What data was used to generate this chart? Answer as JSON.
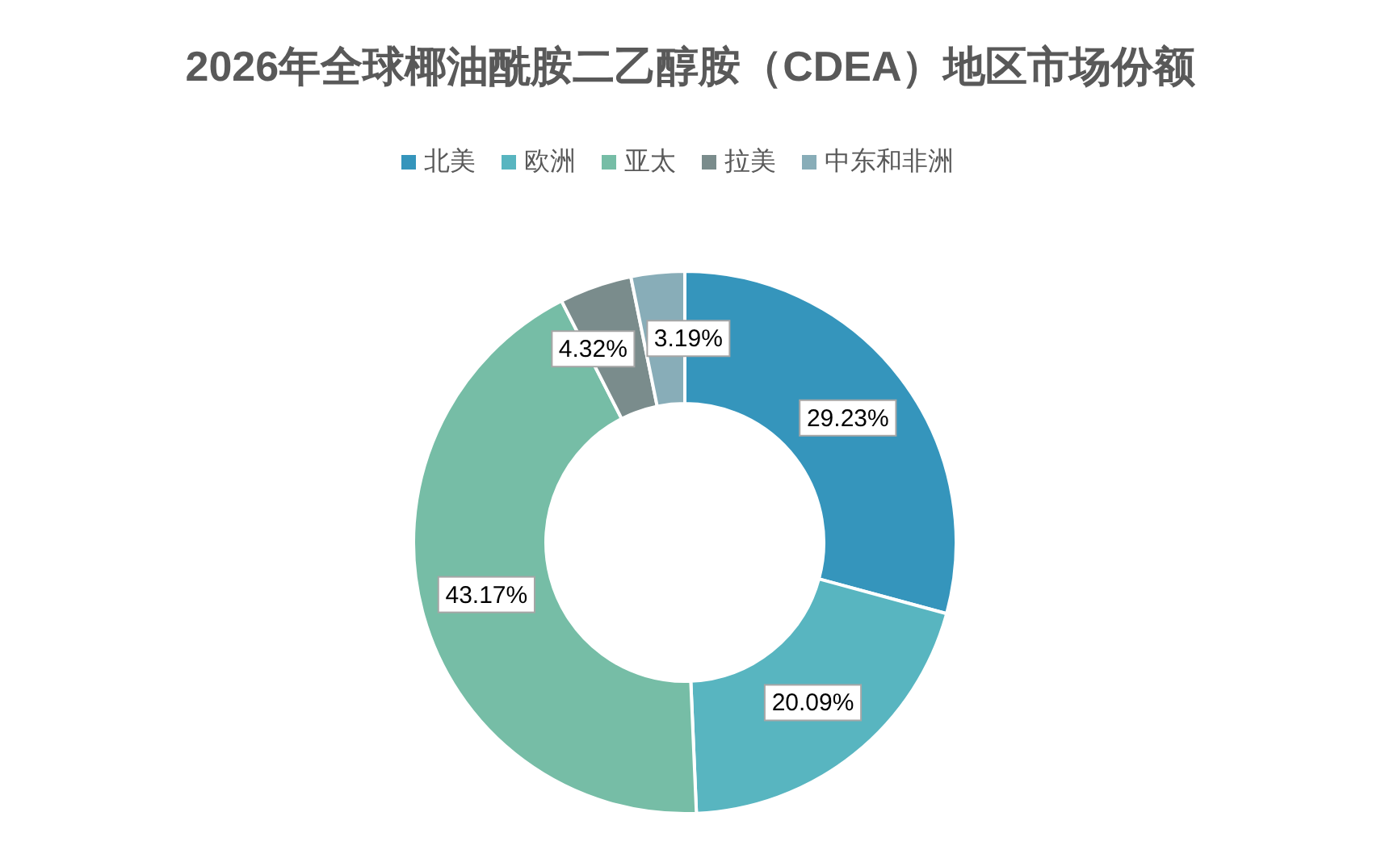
{
  "chart_data": {
    "type": "donut",
    "title": "2026年全球椰油酰胺二乙醇胺（CDEA）地区市场份额",
    "categories": [
      "北美",
      "欧洲",
      "亚太",
      "拉美",
      "中东和非洲"
    ],
    "values": [
      29.23,
      20.09,
      43.17,
      4.32,
      3.19
    ],
    "colors": [
      "#3595bc",
      "#58b5c0",
      "#76bda6",
      "#7a8c8c",
      "#88adb8"
    ],
    "value_labels": [
      "29.23%",
      "20.09%",
      "43.17%",
      "4.32%",
      "3.19%"
    ],
    "legend": "top"
  }
}
